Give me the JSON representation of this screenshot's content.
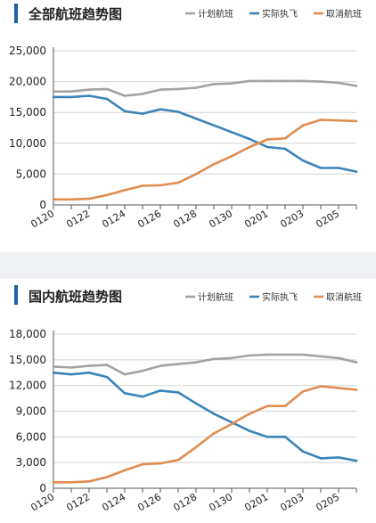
{
  "colors": {
    "planned": "#a3a3a3",
    "actual": "#3c84b8",
    "cancelled": "#e08d52",
    "title_accent": "#1f5fae"
  },
  "chart_data": [
    {
      "type": "line",
      "title": "全部航班趋势图",
      "x": [
        "0120",
        "0121",
        "0122",
        "0123",
        "0124",
        "0125",
        "0126",
        "0127",
        "0128",
        "0129",
        "0130",
        "0131",
        "0201",
        "0202",
        "0203",
        "0204",
        "0205",
        "0206"
      ],
      "x_ticks": [
        "0120",
        "0122",
        "0124",
        "0126",
        "0128",
        "0130",
        "0201",
        "0203",
        "0205"
      ],
      "ylim": [
        0,
        25000
      ],
      "y_ticks": [
        "0",
        "5,000",
        "10,000",
        "15,000",
        "20,000",
        "25,000"
      ],
      "grid": true,
      "legend_position": "top-right",
      "series": [
        {
          "name": "计划航班",
          "color_key": "planned",
          "values": [
            18400,
            18400,
            18700,
            18800,
            17700,
            18000,
            18700,
            18800,
            19000,
            19600,
            19700,
            20100,
            20100,
            20100,
            20100,
            20000,
            19800,
            19300
          ]
        },
        {
          "name": "实际执飞",
          "color_key": "actual",
          "values": [
            17500,
            17500,
            17700,
            17200,
            15200,
            14800,
            15500,
            15100,
            14000,
            12900,
            11800,
            10700,
            9400,
            9100,
            7200,
            6000,
            6000,
            5400
          ]
        },
        {
          "name": "取消航班",
          "color_key": "cancelled",
          "values": [
            900,
            900,
            1000,
            1600,
            2400,
            3100,
            3200,
            3600,
            5000,
            6600,
            7900,
            9400,
            10600,
            10800,
            12900,
            13800,
            13700,
            13600
          ]
        }
      ]
    },
    {
      "type": "line",
      "title": "国内航班趋势图",
      "x": [
        "0120",
        "0121",
        "0122",
        "0123",
        "0124",
        "0125",
        "0126",
        "0127",
        "0128",
        "0129",
        "0130",
        "0131",
        "0201",
        "0202",
        "0203",
        "0204",
        "0205",
        "0206"
      ],
      "x_ticks": [
        "0120",
        "0122",
        "0124",
        "0126",
        "0128",
        "0130",
        "0201",
        "0203",
        "0205"
      ],
      "ylim": [
        0,
        18000
      ],
      "y_ticks": [
        "0",
        "3,000",
        "6,000",
        "9,000",
        "12,000",
        "15,000",
        "18,000"
      ],
      "grid": true,
      "legend_position": "top-right",
      "series": [
        {
          "name": "计划航班",
          "color_key": "planned",
          "values": [
            14200,
            14100,
            14300,
            14400,
            13300,
            13700,
            14300,
            14500,
            14700,
            15100,
            15200,
            15500,
            15600,
            15600,
            15600,
            15400,
            15200,
            14700
          ]
        },
        {
          "name": "实际执飞",
          "color_key": "actual",
          "values": [
            13500,
            13300,
            13500,
            13000,
            11100,
            10700,
            11400,
            11200,
            9900,
            8700,
            7700,
            6700,
            6000,
            6000,
            4300,
            3500,
            3600,
            3200
          ]
        },
        {
          "name": "取消航班",
          "color_key": "cancelled",
          "values": [
            700,
            700,
            800,
            1300,
            2100,
            2800,
            2900,
            3300,
            4800,
            6400,
            7500,
            8700,
            9600,
            9600,
            11300,
            11900,
            11700,
            11500
          ]
        }
      ]
    }
  ]
}
